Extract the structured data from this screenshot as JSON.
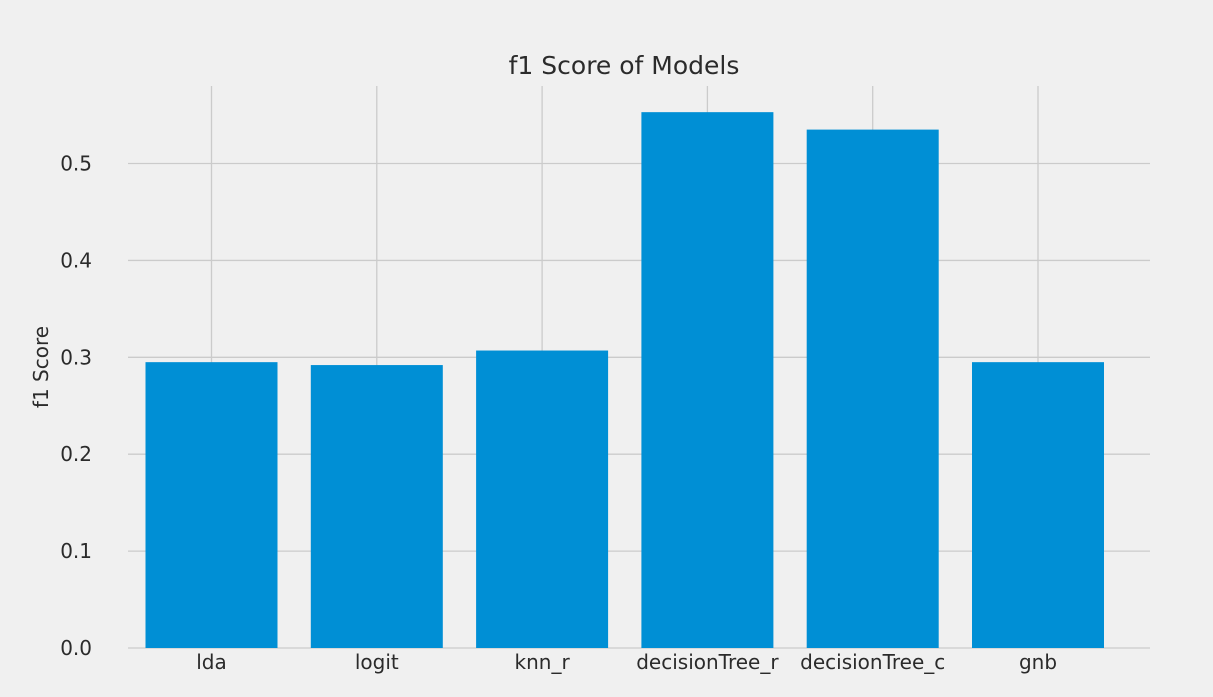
{
  "chart_data": {
    "type": "bar",
    "title": "f1 Score of Models",
    "xlabel": "",
    "ylabel": "f1 Score",
    "categories": [
      "lda",
      "logit",
      "knn_r",
      "decisionTree_r",
      "decisionTree_c",
      "gnb"
    ],
    "values": [
      0.295,
      0.292,
      0.307,
      0.553,
      0.535,
      0.295
    ],
    "ylim": [
      0,
      0.58
    ],
    "yticks": [
      0.0,
      0.1,
      0.2,
      0.3,
      0.4,
      0.5
    ],
    "ytick_labels": [
      "0.0",
      "0.1",
      "0.2",
      "0.3",
      "0.4",
      "0.5"
    ],
    "grid": true,
    "bar_color": "#008fd5",
    "background_color": "#f0f0f0",
    "grid_color": "#cbcbcb"
  }
}
